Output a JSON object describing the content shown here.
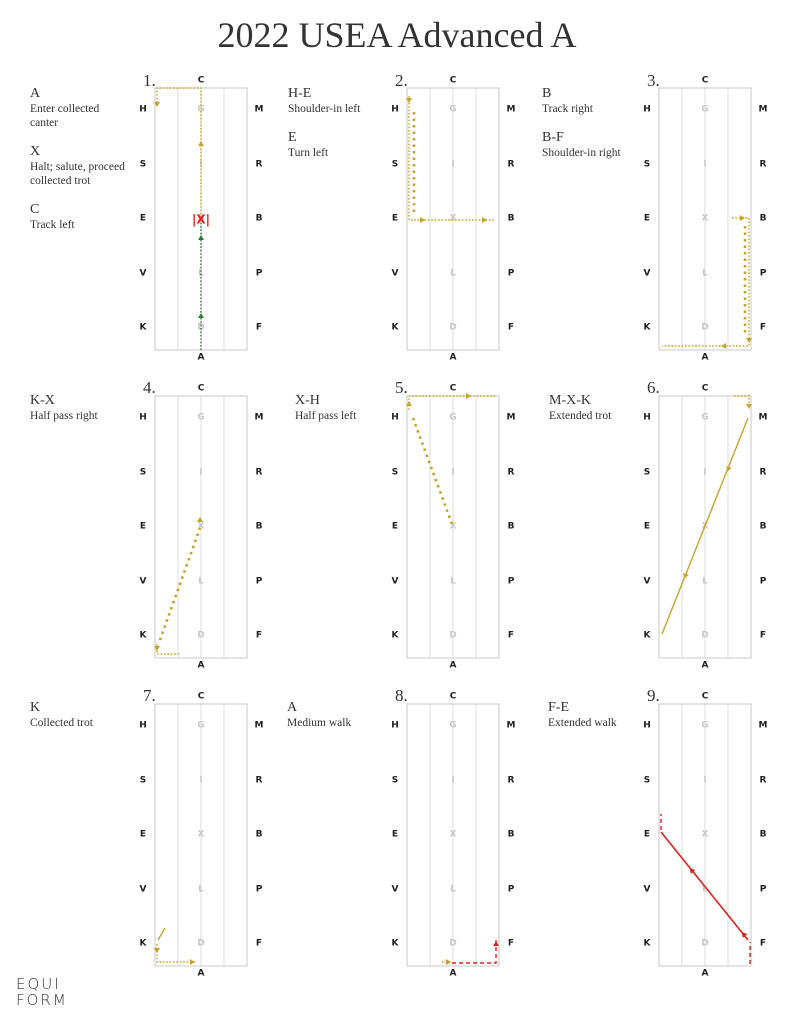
{
  "title": "2022 USEA Advanced A",
  "colors": {
    "gold": "#c9a227",
    "green": "#2e7d32",
    "red": "#e0201c",
    "line": "#d3d3d3",
    "border": "#bdbdbd"
  },
  "arena_letters": {
    "top": "C",
    "bottom": "A",
    "left": [
      "H",
      "S",
      "E",
      "V",
      "K"
    ],
    "right": [
      "M",
      "R",
      "B",
      "P",
      "F"
    ],
    "center": [
      "G",
      "I",
      "X",
      "L",
      "D"
    ]
  },
  "halt_marker": "|X|",
  "logo": [
    "EQUI",
    "FORM"
  ],
  "movements": [
    {
      "number": "1.",
      "items": [
        {
          "code": "A",
          "desc": "Enter collected canter"
        },
        {
          "code": "X",
          "desc": "Halt; salute, proceed collected trot"
        },
        {
          "code": "C",
          "desc": "Track left"
        }
      ]
    },
    {
      "number": "2.",
      "items": [
        {
          "code": "H-E",
          "desc": "Shoulder-in left"
        },
        {
          "code": "E",
          "desc": "Turn left"
        }
      ]
    },
    {
      "number": "3.",
      "items": [
        {
          "code": "B",
          "desc": "Track right"
        },
        {
          "code": "B-F",
          "desc": "Shoulder-in right"
        }
      ]
    },
    {
      "number": "4.",
      "items": [
        {
          "code": "K-X",
          "desc": "Half pass right"
        }
      ]
    },
    {
      "number": "5.",
      "items": [
        {
          "code": "X-H",
          "desc": "Half pass left"
        }
      ]
    },
    {
      "number": "6.",
      "items": [
        {
          "code": "M-X-K",
          "desc": "Extended trot"
        }
      ]
    },
    {
      "number": "7.",
      "items": [
        {
          "code": "K",
          "desc": "Collected trot"
        }
      ]
    },
    {
      "number": "8.",
      "items": [
        {
          "code": "A",
          "desc": "Medium walk"
        }
      ]
    },
    {
      "number": "9.",
      "items": [
        {
          "code": "F-E",
          "desc": "Extended walk"
        }
      ]
    }
  ]
}
